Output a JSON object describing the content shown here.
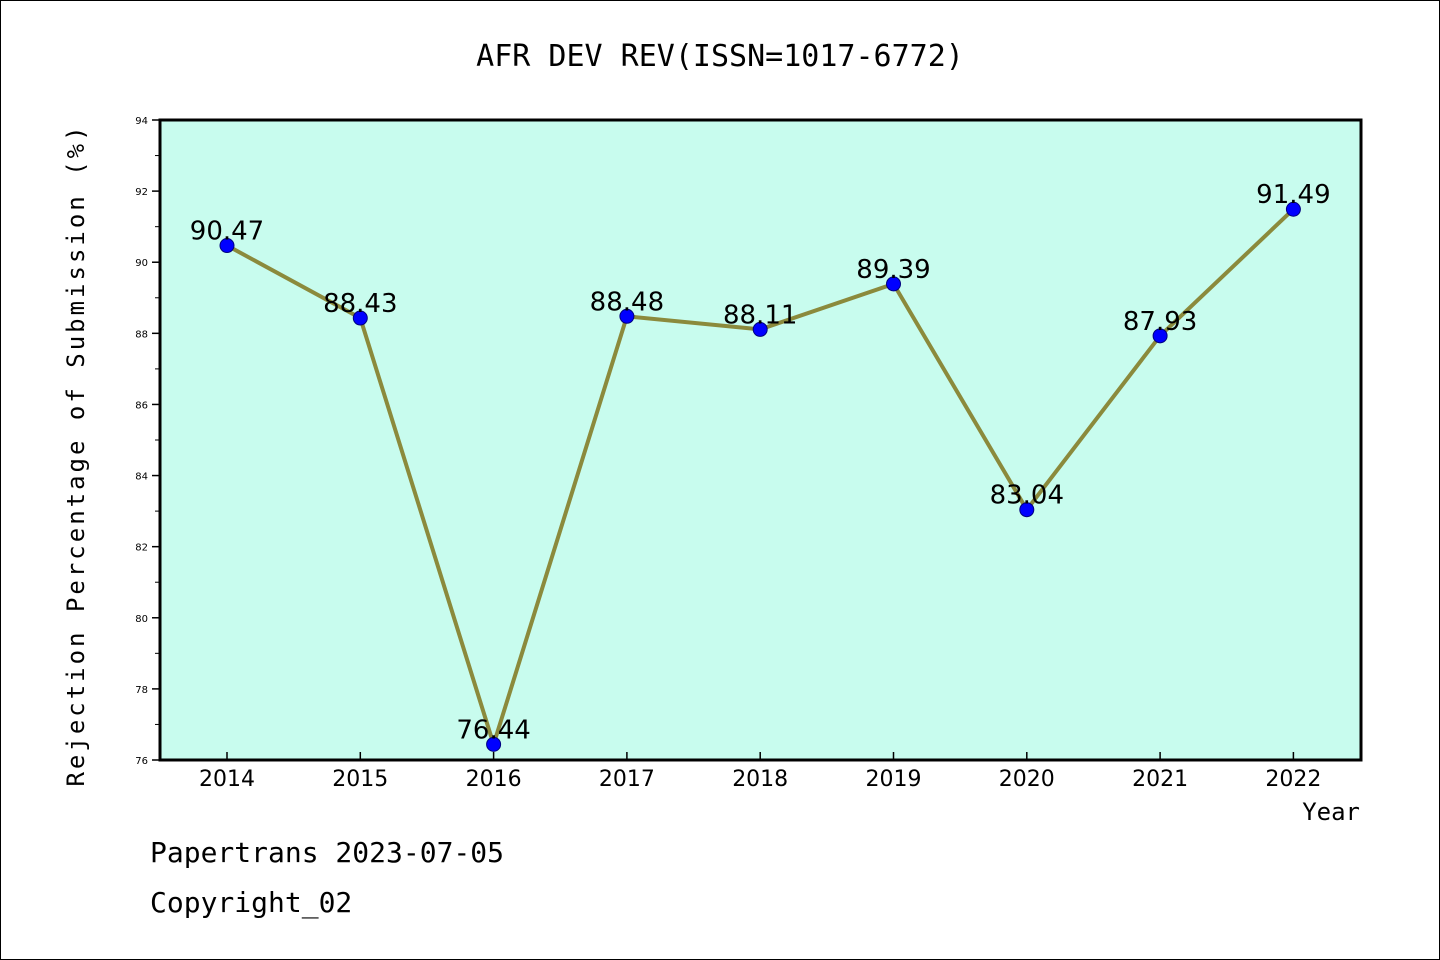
{
  "chart_data": {
    "type": "line",
    "title": "AFR DEV REV(ISSN=1017-6772)",
    "xlabel": "Year",
    "ylabel": "Rejection Percentage of Submission (%)",
    "categories": [
      "2014",
      "2015",
      "2016",
      "2017",
      "2018",
      "2019",
      "2020",
      "2021",
      "2022"
    ],
    "values": [
      90.47,
      88.43,
      76.44,
      88.48,
      88.11,
      89.39,
      83.04,
      87.93,
      91.49
    ],
    "data_labels": [
      "90.47",
      "88.43",
      "76.44",
      "88.48",
      "88.11",
      "89.39",
      "83.04",
      "87.93",
      "91.49"
    ],
    "ylim": [
      76,
      94
    ],
    "yticks": [
      "76",
      "78",
      "80",
      "82",
      "84",
      "86",
      "88",
      "90",
      "92",
      "94"
    ],
    "grid": false,
    "legend": false,
    "colors": {
      "plot_background": "#c8fcee",
      "line": "#8b8a3c",
      "marker": "#0000ff",
      "marker_edge": "#000080"
    }
  },
  "footer": {
    "line1": "Papertrans 2023-07-05",
    "line2": "Copyright_02"
  }
}
